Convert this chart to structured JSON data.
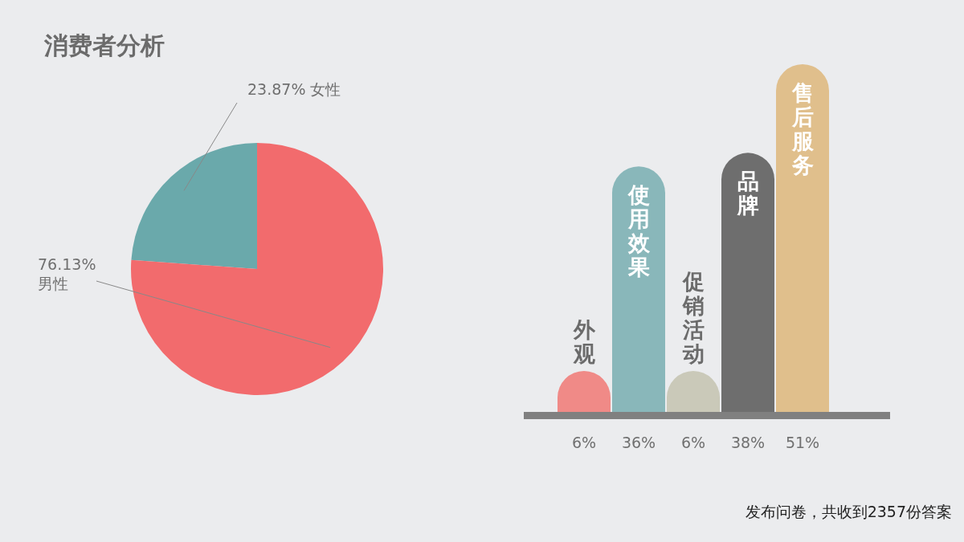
{
  "chart_data": [
    {
      "type": "pie",
      "title": "消费者分析",
      "categories": [
        "女性",
        "男性"
      ],
      "values": [
        23.87,
        76.13
      ],
      "colors": [
        "#6aa9ab",
        "#f26b6d"
      ],
      "value_labels": [
        "23.87%",
        "76.13%"
      ]
    },
    {
      "type": "bar",
      "categories": [
        "外观",
        "使用效果",
        "促销活动",
        "品牌",
        "售后服务"
      ],
      "values": [
        6,
        36,
        6,
        38,
        51
      ],
      "colors": [
        "#f08a87",
        "#89b7ba",
        "#cac9b9",
        "#6e6e6e",
        "#e0bf8c"
      ],
      "value_labels": [
        "6%",
        "36%",
        "6%",
        "38%",
        "51%"
      ],
      "annotations": [
        "发布问卷，共收到2357份答案"
      ]
    }
  ]
}
